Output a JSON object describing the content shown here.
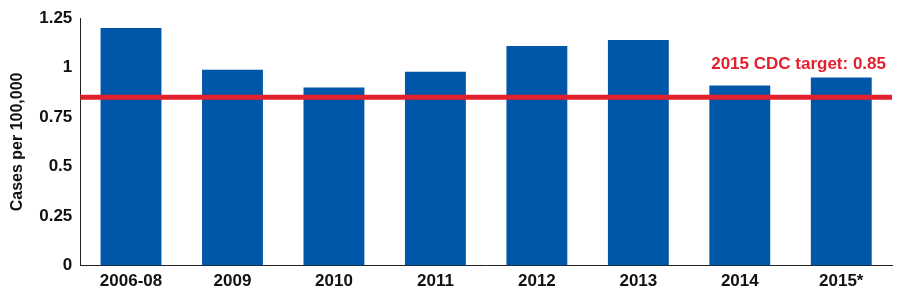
{
  "chart_data": {
    "type": "bar",
    "categories": [
      "2006-08",
      "2009",
      "2010",
      "2011",
      "2012",
      "2013",
      "2014",
      "2015*"
    ],
    "values": [
      1.2,
      0.99,
      0.9,
      0.98,
      1.11,
      1.14,
      0.91,
      0.95
    ],
    "color": "#0056a8",
    "ylabel": "Cases per 100,000",
    "ylim": [
      0,
      1.25
    ],
    "yticks": [
      0,
      0.25,
      0.5,
      0.75,
      1,
      1.25
    ],
    "grid": false,
    "reference_line": {
      "label": "2015 CDC target: 0.85",
      "value": 0.85,
      "color": "#e3202e"
    }
  }
}
